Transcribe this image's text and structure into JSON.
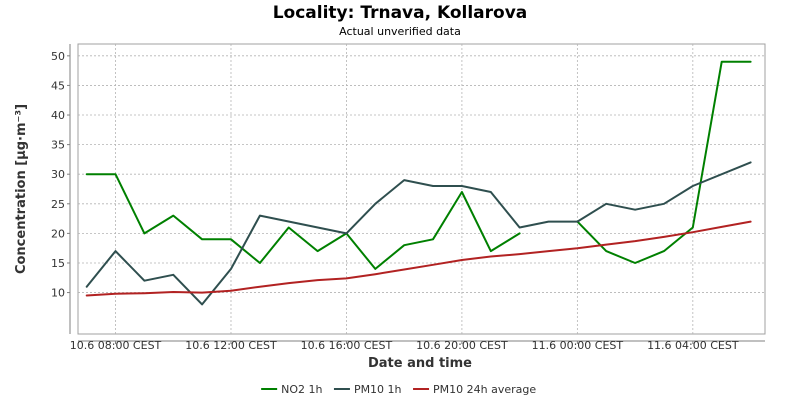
{
  "chart_data": {
    "type": "line",
    "title": "Locality: Trnava, Kollarova",
    "subtitle": "Actual unverified data",
    "xlabel": "Date and time",
    "ylabel": "Concentration [µg·m⁻³]",
    "ylim": [
      3,
      52
    ],
    "yticks": [
      10,
      15,
      20,
      25,
      30,
      35,
      40,
      45,
      50
    ],
    "xlim": [
      6.7,
      30.5
    ],
    "xticks": [
      {
        "x": 8,
        "label": "10.6 08:00 CEST"
      },
      {
        "x": 12,
        "label": "10.6 12:00 CEST"
      },
      {
        "x": 16,
        "label": "10.6 16:00 CEST"
      },
      {
        "x": 20,
        "label": "10.6 20:00 CEST"
      },
      {
        "x": 24,
        "label": "11.6 00:00 CEST"
      },
      {
        "x": 28,
        "label": "11.6 04:00 CEST"
      }
    ],
    "grid": true,
    "legend_position": "bottom",
    "series": [
      {
        "name": "NO2 1h",
        "color": "#008000",
        "points": [
          [
            7,
            30
          ],
          [
            8,
            30
          ],
          [
            9,
            20
          ],
          [
            10,
            23
          ],
          [
            11,
            19
          ],
          [
            12,
            19
          ],
          [
            13,
            15
          ],
          [
            14,
            21
          ],
          [
            15,
            17
          ],
          [
            16,
            20
          ],
          [
            17,
            14
          ],
          [
            18,
            18
          ],
          [
            19,
            19
          ],
          [
            20,
            27
          ],
          [
            21,
            17
          ],
          [
            22,
            20
          ],
          null,
          [
            24,
            22
          ],
          [
            25,
            17
          ],
          [
            26,
            15
          ],
          [
            27,
            17
          ],
          [
            28,
            21
          ],
          [
            29,
            49
          ],
          [
            30,
            49
          ]
        ]
      },
      {
        "name": "PM10 1h",
        "color": "#2f4f4f",
        "points": [
          [
            7,
            11
          ],
          [
            8,
            17
          ],
          [
            9,
            12
          ],
          [
            10,
            13
          ],
          [
            11,
            8
          ],
          [
            12,
            14
          ],
          [
            13,
            23
          ],
          [
            16,
            20
          ],
          [
            17,
            25
          ],
          [
            18,
            29
          ],
          [
            19,
            28
          ],
          [
            20,
            28
          ],
          [
            21,
            27
          ],
          [
            22,
            21
          ],
          [
            23,
            22
          ],
          [
            24,
            22
          ],
          [
            25,
            25
          ],
          [
            26,
            24
          ],
          [
            27,
            25
          ],
          [
            28,
            28
          ],
          [
            30,
            32
          ]
        ]
      },
      {
        "name": "PM10 24h average",
        "color": "#b22222",
        "points": [
          [
            7,
            9.5
          ],
          [
            8,
            9.8
          ],
          [
            9,
            9.9
          ],
          [
            10,
            10.1
          ],
          [
            11,
            10.0
          ],
          [
            12,
            10.3
          ],
          [
            13,
            11.0
          ],
          [
            14,
            11.6
          ],
          [
            15,
            12.1
          ],
          [
            16,
            12.4
          ],
          [
            17,
            13.1
          ],
          [
            18,
            13.9
          ],
          [
            19,
            14.7
          ],
          [
            20,
            15.5
          ],
          [
            21,
            16.1
          ],
          [
            22,
            16.5
          ],
          [
            23,
            17.0
          ],
          [
            24,
            17.5
          ],
          [
            25,
            18.1
          ],
          [
            26,
            18.7
          ],
          [
            27,
            19.4
          ],
          [
            28,
            20.2
          ],
          [
            29,
            21.1
          ],
          [
            30,
            22.0
          ]
        ]
      }
    ]
  }
}
